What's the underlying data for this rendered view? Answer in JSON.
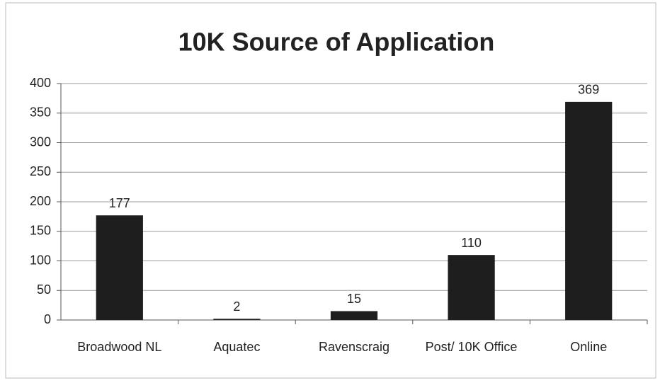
{
  "chart_data": {
    "type": "bar",
    "title": "10K Source of Application",
    "categories": [
      "Broadwood NL",
      "Aquatec",
      "Ravenscraig",
      "Post/ 10K Office",
      "Online"
    ],
    "values": [
      177,
      2,
      15,
      110,
      369
    ],
    "color": "#1e1e1e",
    "ylim": [
      0,
      400
    ],
    "yticks": [
      0,
      50,
      100,
      150,
      200,
      250,
      300,
      350,
      400
    ],
    "grid": true
  }
}
